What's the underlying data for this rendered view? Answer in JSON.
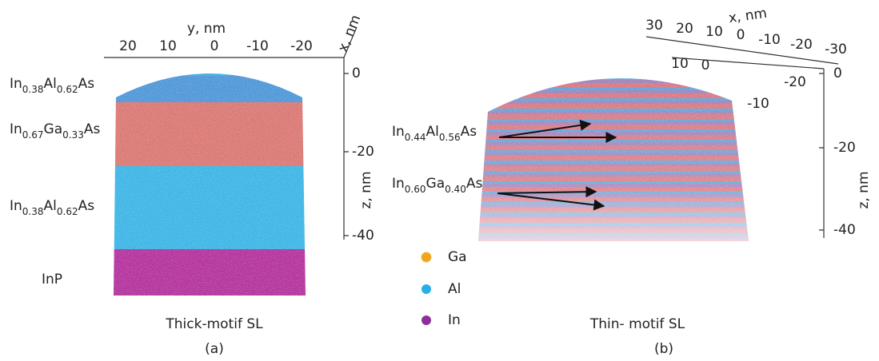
{
  "panel_a": {
    "axis_y_label": "y, nm",
    "axis_x_label": "x, nm",
    "axis_z_label": "z, nm",
    "y_ticks": [
      "20",
      "10",
      "0",
      "-10",
      "-20"
    ],
    "z_ticks": [
      "0",
      "-20",
      "-40"
    ],
    "layers": [
      [
        "In",
        "0.38",
        "Al",
        "0.62",
        "As"
      ],
      [
        "In",
        "0.67",
        "Ga",
        "0.33",
        "As"
      ],
      [
        "In",
        "0.38",
        "Al",
        "0.62",
        "As"
      ],
      [
        "InP"
      ]
    ],
    "caption": "Thick-motif SL",
    "label": "(a)"
  },
  "panel_b": {
    "axis_x_label": "x, nm",
    "axis_z_label": "z, nm",
    "x_ticks": [
      "30",
      "20",
      "10",
      "0",
      "-10",
      "-20",
      "-30"
    ],
    "y_ticks": [
      "10",
      "0",
      "-10",
      "-20"
    ],
    "z_ticks": [
      "0",
      "-20",
      "-40"
    ],
    "layers": [
      [
        "In",
        "0.44",
        "Al",
        "0.56",
        "As"
      ],
      [
        "In",
        "0.60",
        "Ga",
        "0.40",
        "As"
      ]
    ],
    "caption": "Thin- motif SL",
    "label": "(b)"
  },
  "legend": [
    "Ga",
    "Al",
    "In"
  ]
}
